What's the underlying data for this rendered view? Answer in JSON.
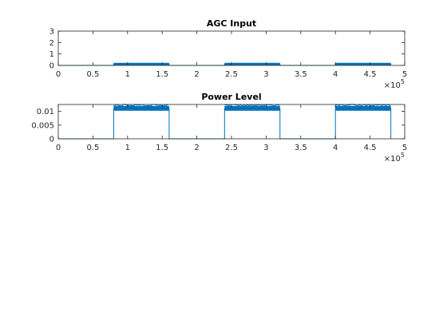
{
  "chart_data": [
    {
      "type": "line",
      "title": "AGC Input",
      "xlabel": "",
      "ylabel": "",
      "xlim": [
        0,
        500000
      ],
      "ylim": [
        0,
        3
      ],
      "xticks": [
        0,
        50000,
        100000,
        150000,
        200000,
        250000,
        300000,
        350000,
        400000,
        450000,
        500000
      ],
      "xtick_labels": [
        "0",
        "0.5",
        "1",
        "1.5",
        "2",
        "2.5",
        "3",
        "3.5",
        "4",
        "4.5",
        "5"
      ],
      "x_exponent_label": "×10^5",
      "yticks": [
        0,
        1,
        2,
        3
      ],
      "ytick_labels": [
        "0",
        "1",
        "2",
        "3"
      ],
      "grid": false,
      "series": [
        {
          "color": "#0072BD",
          "description": "Bursts of near-zero amplitude signal; active only in three windows",
          "x": [
            0,
            80000,
            80000,
            160000,
            160000,
            240000,
            240000,
            320000,
            320000,
            400000,
            400000,
            480000,
            480000
          ],
          "y": [
            0,
            0,
            0.12,
            0.12,
            0,
            0,
            0.12,
            0.12,
            0,
            0,
            0.12,
            0.12,
            0
          ]
        }
      ]
    },
    {
      "type": "line",
      "title": "Power Level",
      "xlabel": "",
      "ylabel": "",
      "xlim": [
        0,
        500000
      ],
      "ylim": [
        0,
        0.0125
      ],
      "xticks": [
        0,
        50000,
        100000,
        150000,
        200000,
        250000,
        300000,
        350000,
        400000,
        450000,
        500000
      ],
      "xtick_labels": [
        "0",
        "0.5",
        "1",
        "1.5",
        "2",
        "2.5",
        "3",
        "3.5",
        "4",
        "4.5",
        "5"
      ],
      "x_exponent_label": "×10^5",
      "yticks": [
        0,
        0.005,
        0.01
      ],
      "ytick_labels": [
        "0",
        "0.005",
        "0.01"
      ],
      "grid": false,
      "series": [
        {
          "color": "#0072BD",
          "x": [
            0,
            80000,
            80000,
            160000,
            160000,
            240000,
            240000,
            320000,
            320000,
            400000,
            400000,
            480000,
            480000
          ],
          "y": [
            0,
            0,
            0.0111,
            0.0111,
            0,
            0,
            0.0111,
            0.0111,
            0,
            0,
            0.0111,
            0.0111,
            0
          ]
        }
      ]
    }
  ]
}
